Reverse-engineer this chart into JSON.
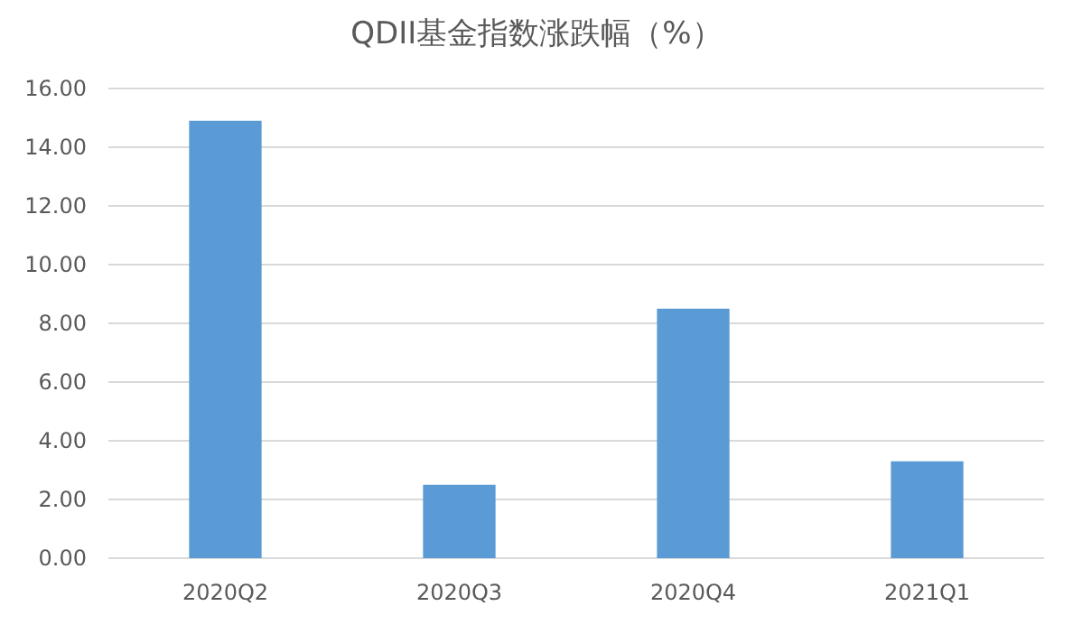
{
  "chart_data": {
    "type": "bar",
    "title": "QDII基金指数涨跌幅（%）",
    "categories": [
      "2020Q2",
      "2020Q3",
      "2020Q4",
      "2021Q1"
    ],
    "values": [
      14.9,
      2.5,
      8.5,
      3.3
    ],
    "color": "#5b9bd5",
    "ylim": [
      0,
      16
    ],
    "yticks": [
      {
        "value": 0,
        "label": "0.00"
      },
      {
        "value": 2,
        "label": "2.00"
      },
      {
        "value": 4,
        "label": "4.00"
      },
      {
        "value": 6,
        "label": "6.00"
      },
      {
        "value": 8,
        "label": "8.00"
      },
      {
        "value": 10,
        "label": "10.00"
      },
      {
        "value": 12,
        "label": "12.00"
      },
      {
        "value": 14,
        "label": "14.00"
      },
      {
        "value": 16,
        "label": "16.00"
      }
    ],
    "grid": "y"
  }
}
